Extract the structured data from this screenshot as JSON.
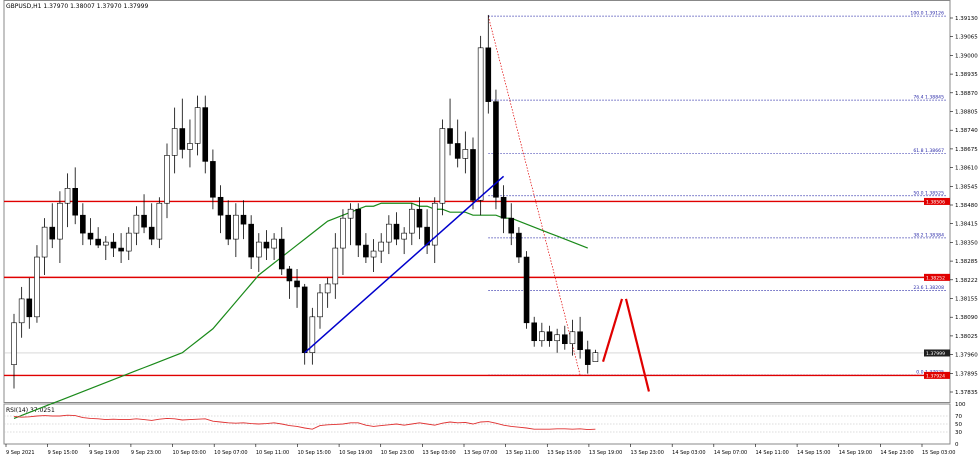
{
  "header": {
    "text": "GBPUSD,H1  1.37970 1.38007 1.37970 1.37999"
  },
  "rsi": {
    "label": "RSI(14) 37.0251"
  },
  "colors": {
    "up_candle": "#ffffff",
    "down_candle": "#000000",
    "outline": "#000000",
    "ma": "#1a8a1a",
    "trendline": "#0000cc",
    "levels": "#e00000",
    "fib": "#2a2aa8",
    "fib_diag": "#e00000",
    "rsi": "#e03030",
    "badge": "#e00000",
    "price_badge": "#202020"
  },
  "chart_data": [
    {
      "type": "candlestick",
      "title": "",
      "ylim": [
        1.37835,
        1.3918
      ],
      "y_ticks": [
        "1.39130",
        "1.39065",
        "1.39000",
        "1.38935",
        "1.38870",
        "1.38805",
        "1.38740",
        "1.38675",
        "1.38610",
        "1.38545",
        "1.38480",
        "1.38415",
        "1.38350",
        "1.38285",
        "1.38222",
        "1.38155",
        "1.38090",
        "1.38025",
        "1.37960",
        "1.37895",
        "1.37835"
      ],
      "x_ticks": [
        "9 Sep 2021",
        "9 Sep 15:00",
        "9 Sep 19:00",
        "9 Sep 23:00",
        "10 Sep 03:00",
        "10 Sep 07:00",
        "10 Sep 11:00",
        "10 Sep 15:00",
        "10 Sep 19:00",
        "10 Sep 23:00",
        "13 Sep 03:00",
        "13 Sep 07:00",
        "13 Sep 11:00",
        "13 Sep 15:00",
        "13 Sep 19:00",
        "13 Sep 23:00",
        "14 Sep 03:00",
        "14 Sep 07:00",
        "14 Sep 11:00",
        "14 Sep 15:00",
        "14 Sep 19:00",
        "14 Sep 23:00",
        "15 Sep 03:00"
      ],
      "candles": [
        [
          1.3796,
          1.3813,
          1.3788,
          1.381
        ],
        [
          1.381,
          1.3822,
          1.3805,
          1.3818
        ],
        [
          1.3818,
          1.3825,
          1.3808,
          1.3812
        ],
        [
          1.3812,
          1.3836,
          1.381,
          1.3832
        ],
        [
          1.3832,
          1.3845,
          1.3826,
          1.3842
        ],
        [
          1.3842,
          1.385,
          1.3835,
          1.3838
        ],
        [
          1.3838,
          1.3854,
          1.383,
          1.385
        ],
        [
          1.385,
          1.386,
          1.3842,
          1.3855
        ],
        [
          1.3855,
          1.3862,
          1.3843,
          1.3846
        ],
        [
          1.3846,
          1.385,
          1.3836,
          1.384
        ],
        [
          1.384,
          1.3845,
          1.3836,
          1.3838
        ],
        [
          1.3838,
          1.3842,
          1.3835,
          1.3836
        ],
        [
          1.3836,
          1.3839,
          1.3831,
          1.3837
        ],
        [
          1.3837,
          1.384,
          1.3832,
          1.3835
        ],
        [
          1.3835,
          1.384,
          1.383,
          1.3834
        ],
        [
          1.3834,
          1.3842,
          1.3831,
          1.384
        ],
        [
          1.384,
          1.3849,
          1.3836,
          1.3846
        ],
        [
          1.3846,
          1.3853,
          1.384,
          1.3842
        ],
        [
          1.3842,
          1.385,
          1.3836,
          1.3838
        ],
        [
          1.3838,
          1.3852,
          1.3835,
          1.385
        ],
        [
          1.385,
          1.387,
          1.3845,
          1.3866
        ],
        [
          1.3866,
          1.3882,
          1.386,
          1.3875
        ],
        [
          1.3875,
          1.3885,
          1.3865,
          1.3868
        ],
        [
          1.3868,
          1.3878,
          1.3862,
          1.387
        ],
        [
          1.387,
          1.3886,
          1.3866,
          1.3882
        ],
        [
          1.3882,
          1.3886,
          1.386,
          1.3864
        ],
        [
          1.3864,
          1.3868,
          1.3848,
          1.3852
        ],
        [
          1.3852,
          1.3856,
          1.384,
          1.3846
        ],
        [
          1.3846,
          1.3851,
          1.3836,
          1.3838
        ],
        [
          1.3838,
          1.385,
          1.3832,
          1.3846
        ],
        [
          1.3846,
          1.3851,
          1.3838,
          1.3843
        ],
        [
          1.3843,
          1.3846,
          1.3828,
          1.3832
        ],
        [
          1.3832,
          1.384,
          1.3827,
          1.3837
        ],
        [
          1.3837,
          1.3841,
          1.3831,
          1.3835
        ],
        [
          1.3835,
          1.384,
          1.3831,
          1.3838
        ],
        [
          1.3838,
          1.3842,
          1.3826,
          1.3828
        ],
        [
          1.3828,
          1.3829,
          1.3818,
          1.3824
        ],
        [
          1.3824,
          1.3828,
          1.3815,
          1.3822
        ],
        [
          1.3822,
          1.3823,
          1.3796,
          1.38
        ],
        [
          1.38,
          1.3815,
          1.3796,
          1.3812
        ],
        [
          1.3812,
          1.3823,
          1.3808,
          1.382
        ],
        [
          1.382,
          1.3825,
          1.3815,
          1.3823
        ],
        [
          1.3823,
          1.384,
          1.3818,
          1.3835
        ],
        [
          1.3835,
          1.3848,
          1.3826,
          1.3845
        ],
        [
          1.3845,
          1.385,
          1.3836,
          1.3848
        ],
        [
          1.3848,
          1.385,
          1.3832,
          1.3836
        ],
        [
          1.3836,
          1.384,
          1.383,
          1.3832
        ],
        [
          1.3832,
          1.3838,
          1.3827,
          1.3834
        ],
        [
          1.3834,
          1.384,
          1.383,
          1.3837
        ],
        [
          1.3837,
          1.3846,
          1.3833,
          1.3843
        ],
        [
          1.3843,
          1.3847,
          1.3836,
          1.3838
        ],
        [
          1.3838,
          1.3842,
          1.3833,
          1.384
        ],
        [
          1.384,
          1.385,
          1.3836,
          1.3848
        ],
        [
          1.3848,
          1.3852,
          1.3838,
          1.3842
        ],
        [
          1.3842,
          1.3848,
          1.3833,
          1.3836
        ],
        [
          1.3836,
          1.3852,
          1.383,
          1.385
        ],
        [
          1.385,
          1.3878,
          1.3846,
          1.3875
        ],
        [
          1.3875,
          1.3885,
          1.3866,
          1.387
        ],
        [
          1.387,
          1.3878,
          1.3862,
          1.3865
        ],
        [
          1.3865,
          1.3874,
          1.386,
          1.3868
        ],
        [
          1.3868,
          1.3872,
          1.3848,
          1.3851
        ],
        [
          1.3851,
          1.3906,
          1.3846,
          1.3902
        ],
        [
          1.3902,
          1.3913,
          1.388,
          1.3884
        ],
        [
          1.3884,
          1.3888,
          1.3848,
          1.3852
        ],
        [
          1.3852,
          1.3856,
          1.384,
          1.3845
        ],
        [
          1.3845,
          1.385,
          1.3836,
          1.384
        ],
        [
          1.384,
          1.3842,
          1.383,
          1.3832
        ],
        [
          1.3832,
          1.3834,
          1.3808,
          1.381
        ],
        [
          1.381,
          1.3812,
          1.3802,
          1.3804
        ],
        [
          1.3804,
          1.381,
          1.3802,
          1.3807
        ],
        [
          1.3807,
          1.3809,
          1.3802,
          1.3804
        ],
        [
          1.3804,
          1.3808,
          1.38,
          1.3806
        ],
        [
          1.3806,
          1.3809,
          1.3801,
          1.3803
        ],
        [
          1.3803,
          1.3811,
          1.3799,
          1.3807
        ],
        [
          1.3807,
          1.3812,
          1.3798,
          1.3801
        ],
        [
          1.3801,
          1.3804,
          1.3793,
          1.3796
        ],
        [
          1.3797,
          1.3801,
          1.3797,
          1.38
        ]
      ],
      "ma": [
        1.3778,
        1.3779,
        1.378,
        1.3781,
        1.3782,
        1.3783,
        1.3784,
        1.3785,
        1.3786,
        1.3787,
        1.3788,
        1.3789,
        1.379,
        1.3791,
        1.3792,
        1.3793,
        1.3794,
        1.3795,
        1.3796,
        1.3797,
        1.3798,
        1.3799,
        1.38,
        1.3802,
        1.3804,
        1.3806,
        1.3808,
        1.3811,
        1.3814,
        1.3817,
        1.382,
        1.3823,
        1.3826,
        1.3828,
        1.383,
        1.3832,
        1.3834,
        1.3836,
        1.3838,
        1.384,
        1.3842,
        1.3844,
        1.3845,
        1.3846,
        1.3847,
        1.3848,
        1.3849,
        1.3849,
        1.385,
        1.385,
        1.385,
        1.385,
        1.385,
        1.3849,
        1.3849,
        1.3848,
        1.3848,
        1.3847,
        1.3847,
        1.3847,
        1.3846,
        1.3846,
        1.3846,
        1.3846,
        1.3845,
        1.3845,
        1.3844,
        1.3843,
        1.3842,
        1.3841,
        1.384,
        1.3839,
        1.3838,
        1.3837,
        1.3836,
        1.3835
      ],
      "horizontal_levels": [
        1.38506,
        1.38252,
        1.37924
      ],
      "level_labels": [
        "1.38506",
        "1.38252",
        "1.37924"
      ],
      "current_price": {
        "value": 1.37999,
        "label": "1.37999"
      },
      "trendline": {
        "from": {
          "index": 38,
          "price": 1.38
        },
        "to": {
          "index": 64,
          "price": 1.3859
        }
      },
      "fib": {
        "from_index": 62,
        "to_index": 74,
        "levels": [
          {
            "label": "100.0 1.39126",
            "price": 1.39126
          },
          {
            "label": "76.4 1.38845",
            "price": 1.38845
          },
          {
            "label": "61.8 1.38667",
            "price": 1.38667
          },
          {
            "label": "50.0 1.38525",
            "price": 1.38525
          },
          {
            "label": "38.2 1.38384",
            "price": 1.38384
          },
          {
            "label": "23.6 1.38208",
            "price": 1.38208
          },
          {
            "label": "0.0 1.37925",
            "price": 1.37925
          }
        ]
      },
      "projection": [
        {
          "index": 77,
          "price": 1.3797
        },
        {
          "index": 80,
          "price": 1.3818
        },
        {
          "index": 83,
          "price": 1.3787
        }
      ]
    },
    {
      "type": "line",
      "title": "",
      "ylim": [
        0,
        100
      ],
      "y_ticks": [
        "100",
        "70",
        "50",
        "30",
        "0"
      ],
      "values": [
        69,
        67,
        68,
        70,
        71,
        70,
        70,
        72,
        71,
        66,
        64,
        63,
        61,
        62,
        61,
        61,
        63,
        61,
        59,
        62,
        64,
        63,
        60,
        61,
        62,
        63,
        57,
        55,
        53,
        52,
        53,
        51,
        50,
        51,
        53,
        50,
        46,
        44,
        40,
        37,
        46,
        48,
        49,
        50,
        53,
        53,
        47,
        44,
        46,
        48,
        50,
        47,
        50,
        53,
        50,
        47,
        52,
        55,
        53,
        54,
        50,
        55,
        56,
        52,
        47,
        44,
        42,
        40,
        37,
        37,
        37,
        38,
        38,
        37,
        38,
        36,
        37
      ]
    }
  ]
}
